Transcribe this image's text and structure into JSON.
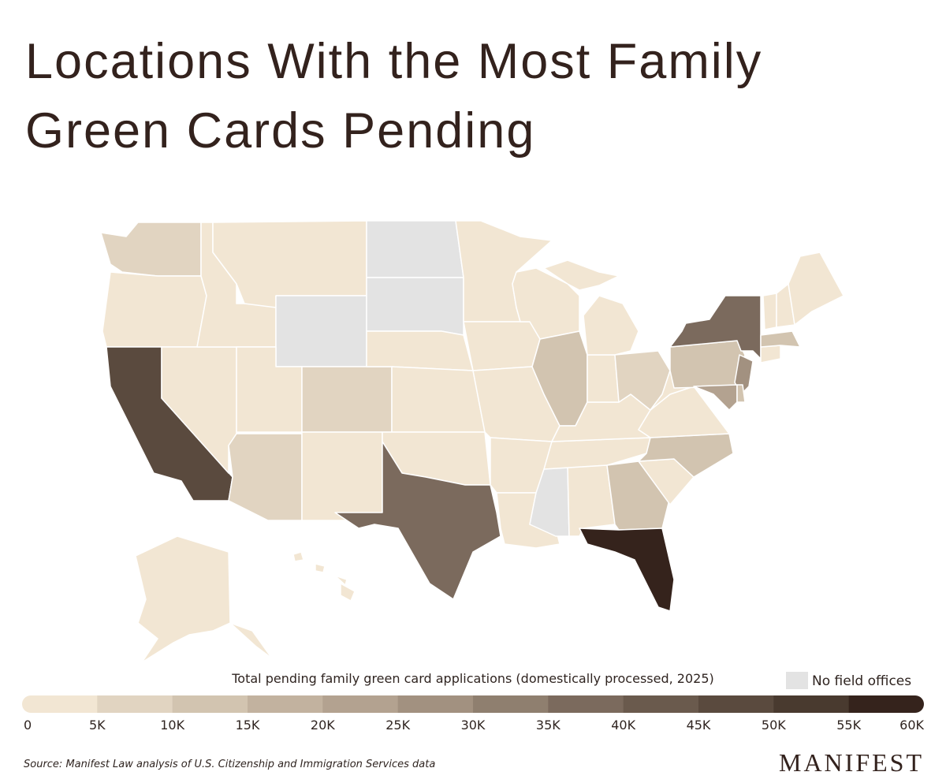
{
  "chart_data": {
    "type": "choropleth",
    "title": "Locations With the Most Family Green Cards Pending",
    "values": [
      8000,
      3000,
      47000,
      3000,
      3000,
      2000,
      null,
      3000,
      8000,
      8000,
      2000,
      null,
      null,
      2000,
      2000,
      3000,
      37000,
      3000,
      3000,
      3000,
      2000,
      3000,
      3000,
      12000,
      null,
      3000,
      4000,
      3000,
      3000,
      3000,
      7000,
      13000,
      57000,
      3000,
      12000,
      3000,
      3000,
      12000,
      37000,
      27000,
      22000,
      12000,
      3000,
      12000,
      3000,
      3000,
      3000,
      3000,
      3000
    ],
    "colorbar": {
      "title": "Total pending family green card applications (domestically processed, 2025)",
      "lim": [
        0,
        60000
      ],
      "ticks": [
        0,
        {
          "value": 5000,
          "label": "5K"
        },
        {
          "value": 10000,
          "label": "10K"
        },
        {
          "value": 15000,
          "label": "15K"
        },
        {
          "value": 20000,
          "label": "20K"
        },
        {
          "value": 25000,
          "label": "25K"
        },
        {
          "value": 30000,
          "label": "30K"
        },
        {
          "value": 35000,
          "label": "35K"
        },
        {
          "value": 40000,
          "label": "40K"
        },
        {
          "value": 45000,
          "label": "45K"
        },
        {
          "value": 50000,
          "label": "50K"
        },
        {
          "value": 55000,
          "label": "55K"
        },
        {
          "value": 60000,
          "label": "60K"
        }
      ],
      "colors": [
        "#f2e6d3",
        "#e1d4c1",
        "#d2c4b0",
        "#c2b29f",
        "#b3a290",
        "#a29180",
        "#8f7f6f",
        "#7b6a5d",
        "#6a5a4d",
        "#5a4a3e",
        "#493a2f",
        "#35231c"
      ]
    },
    "no_data_label": "No field offices",
    "no_data_color": "#e3e3e3",
    "source": "Source: Manifest Law analysis of U.S. Citizenship and Immigration Services data",
    "brand": "MANIFEST"
  }
}
